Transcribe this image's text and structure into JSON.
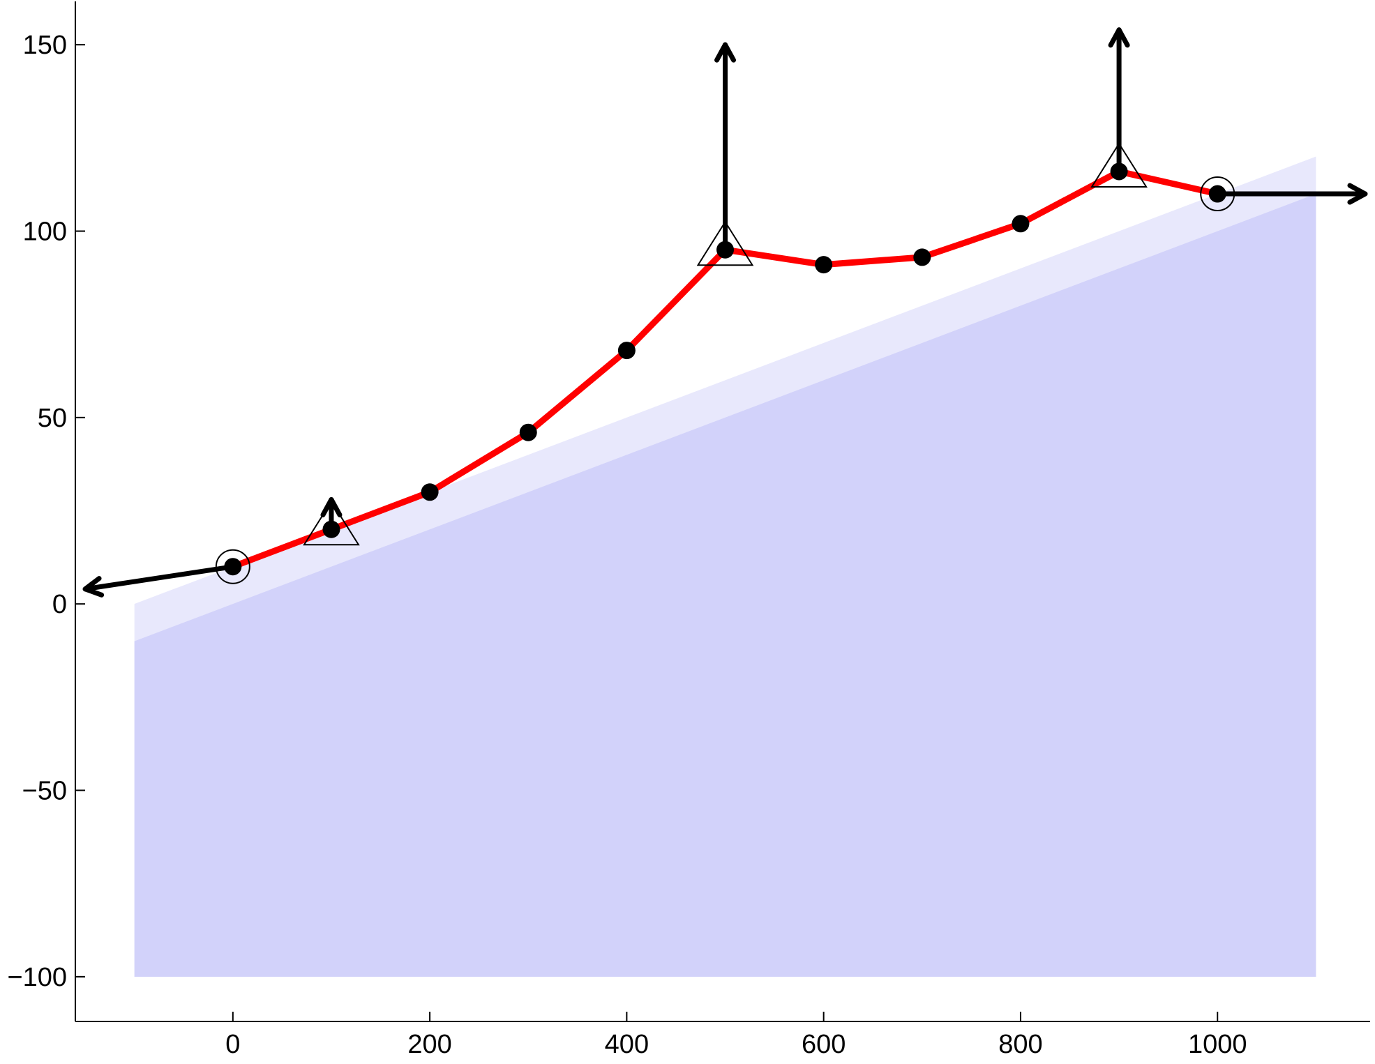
{
  "chart_data": {
    "type": "line",
    "title": "",
    "xlabel": "",
    "ylabel": "",
    "xlim": [
      -160,
      1155
    ],
    "ylim": [
      -112,
      162
    ],
    "xticks": [
      0,
      200,
      400,
      600,
      800,
      1000
    ],
    "yticks": [
      -100,
      -50,
      0,
      50,
      100,
      150
    ],
    "xtick_labels": [
      "0",
      "200",
      "400",
      "600",
      "800",
      "1000"
    ],
    "ytick_labels": [
      "−100",
      "−50",
      "0",
      "50",
      "100",
      "150"
    ],
    "grid": false,
    "legend": null,
    "colors": {
      "line": "#ff0000",
      "points": "#000000",
      "region_light": "#e8e8fc",
      "region_dark": "#d2d2fa",
      "vectors": "#000000"
    },
    "series": [
      {
        "x": [
          0,
          100,
          200,
          300,
          400,
          500,
          600,
          700,
          800,
          900,
          1000
        ],
        "y": [
          10,
          20,
          30,
          46,
          68,
          95,
          91,
          93,
          102,
          116,
          110
        ]
      }
    ],
    "regions": [
      {
        "x": [
          -100,
          1100
        ],
        "top": [
          0,
          120
        ],
        "bottom": [
          -100,
          -100
        ]
      },
      {
        "x": [
          -100,
          1100
        ],
        "top": [
          -10,
          110
        ],
        "bottom": [
          -100,
          -100
        ]
      }
    ],
    "fixed_supports": [
      {
        "x": 0,
        "y": 10
      },
      {
        "x": 1000,
        "y": 110
      }
    ],
    "roller_supports": [
      {
        "x": 100,
        "y": 20
      },
      {
        "x": 500,
        "y": 95
      },
      {
        "x": 900,
        "y": 116
      }
    ],
    "vectors": [
      {
        "from": [
          0,
          10
        ],
        "to": [
          -150,
          4
        ]
      },
      {
        "from": [
          1000,
          110
        ],
        "to": [
          1150,
          110
        ]
      },
      {
        "from": [
          100,
          20
        ],
        "to": [
          100,
          28
        ]
      },
      {
        "from": [
          500,
          95
        ],
        "to": [
          500,
          150
        ]
      },
      {
        "from": [
          900,
          116
        ],
        "to": [
          900,
          154
        ]
      }
    ]
  }
}
